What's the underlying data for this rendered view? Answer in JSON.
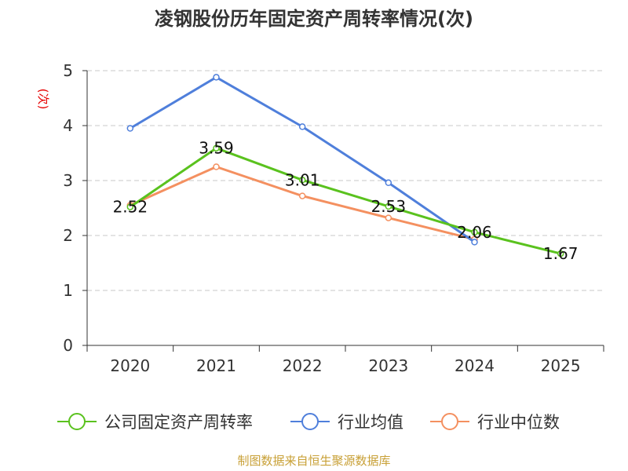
{
  "chart_data": {
    "type": "line",
    "title": "凌钢股份历年固定资产周转率情况(次)",
    "ylabel": "(次)",
    "xlabel": "",
    "categories": [
      "2020",
      "2021",
      "2022",
      "2023",
      "2024",
      "2025"
    ],
    "ylim": [
      0,
      5
    ],
    "yticks": [
      0,
      1,
      2,
      3,
      4,
      5
    ],
    "grid": true,
    "legend_position": "bottom",
    "series": [
      {
        "name": "公司固定资产周转率",
        "color": "#5ac21e",
        "values": [
          2.52,
          3.59,
          3.01,
          2.53,
          2.06,
          1.67
        ],
        "labels": [
          "2.52",
          "3.59",
          "3.01",
          "2.53",
          "2.06",
          "1.67"
        ]
      },
      {
        "name": "行业均值",
        "color": "#4f7fdb",
        "values": [
          3.95,
          4.88,
          3.98,
          2.96,
          1.88,
          null
        ]
      },
      {
        "name": "行业中位数",
        "color": "#f49060",
        "values": [
          2.55,
          3.25,
          2.72,
          2.32,
          1.93,
          null
        ]
      }
    ],
    "source": "制图数据来自恒生聚源数据库"
  }
}
